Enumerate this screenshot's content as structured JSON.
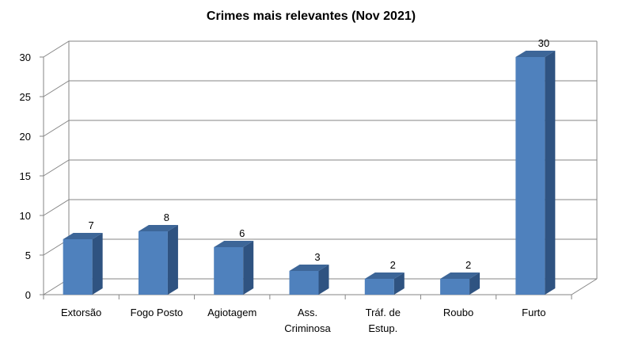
{
  "chart_data": {
    "type": "bar",
    "title": "Crimes mais relevantes (Nov 2021)",
    "categories": [
      [
        "Extorsão"
      ],
      [
        "Fogo Posto"
      ],
      [
        "Agiotagem"
      ],
      [
        "Ass.",
        "Criminosa"
      ],
      [
        "Tráf. de",
        "Estup."
      ],
      [
        "Roubo"
      ],
      [
        "Furto"
      ]
    ],
    "values": [
      7,
      8,
      6,
      3,
      2,
      2,
      30
    ],
    "yticks": [
      "0",
      "5",
      "10",
      "15",
      "20",
      "25",
      "30"
    ],
    "ylim": [
      0,
      30
    ],
    "grid": true,
    "legend": "none",
    "colors": {
      "bar_front": "#4f81bd",
      "bar_side": "#2f5381",
      "bar_top": "#3d6698",
      "grid": "#868686",
      "axis": "#868686"
    }
  }
}
